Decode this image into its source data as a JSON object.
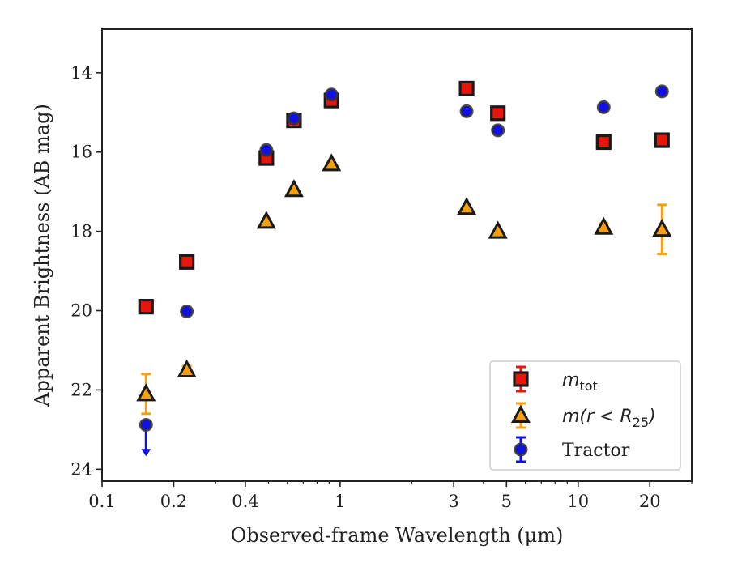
{
  "chart_data": {
    "type": "scatter",
    "xlabel": "Observed-frame Wavelength (μm)",
    "ylabel": "Apparent Brightness (AB mag)",
    "xscale": "log",
    "xlim": [
      0.1,
      30
    ],
    "ylim": [
      24.3,
      12.9
    ],
    "y_inverted": true,
    "grid": false,
    "legend_position": "bottom-right",
    "xticks": [
      {
        "value": 0.1,
        "label": "0.1"
      },
      {
        "value": 0.2,
        "label": "0.2"
      },
      {
        "value": 0.4,
        "label": "0.4"
      },
      {
        "value": 1,
        "label": "1"
      },
      {
        "value": 3,
        "label": "3"
      },
      {
        "value": 5,
        "label": "5"
      },
      {
        "value": 10,
        "label": "10"
      },
      {
        "value": 20,
        "label": "20"
      }
    ],
    "yticks": [
      {
        "value": 14,
        "label": "14"
      },
      {
        "value": 16,
        "label": "16"
      },
      {
        "value": 18,
        "label": "18"
      },
      {
        "value": 20,
        "label": "20"
      },
      {
        "value": 22,
        "label": "22"
      },
      {
        "value": 24,
        "label": "24"
      }
    ],
    "series": [
      {
        "name": "m_tot",
        "legend_main": "m",
        "legend_sub": "tot",
        "marker": "square",
        "color": "#e8150c",
        "edge": "#1a1a1a",
        "points": [
          {
            "x": 0.153,
            "y": 19.9,
            "err": 0
          },
          {
            "x": 0.227,
            "y": 18.77,
            "err": 0
          },
          {
            "x": 0.49,
            "y": 16.15,
            "err": 0
          },
          {
            "x": 0.64,
            "y": 15.2,
            "err": 0
          },
          {
            "x": 0.92,
            "y": 14.7,
            "err": 0
          },
          {
            "x": 3.4,
            "y": 14.4,
            "err": 0
          },
          {
            "x": 4.6,
            "y": 15.02,
            "err": 0
          },
          {
            "x": 12.8,
            "y": 15.75,
            "err": 0
          },
          {
            "x": 22.5,
            "y": 15.7,
            "err": 0
          }
        ]
      },
      {
        "name": "m(r<R25)",
        "legend_main": "m(r < R",
        "legend_sub": "25",
        "legend_tail": ")",
        "marker": "triangle",
        "color": "#f5a00f",
        "edge": "#1a1a1a",
        "points": [
          {
            "x": 0.153,
            "y": 22.1,
            "err": 0.5
          },
          {
            "x": 0.227,
            "y": 21.5,
            "err": 0.1
          },
          {
            "x": 0.49,
            "y": 17.75,
            "err": 0
          },
          {
            "x": 0.64,
            "y": 16.95,
            "err": 0
          },
          {
            "x": 0.92,
            "y": 16.3,
            "err": 0
          },
          {
            "x": 3.4,
            "y": 17.4,
            "err": 0
          },
          {
            "x": 4.6,
            "y": 18.0,
            "err": 0
          },
          {
            "x": 12.8,
            "y": 17.9,
            "err": 0.1
          },
          {
            "x": 22.5,
            "y": 17.95,
            "err": 0.62
          }
        ]
      },
      {
        "name": "Tractor",
        "legend_main": "Tractor",
        "marker": "circle",
        "color": "#1010e8",
        "edge": "#333333",
        "points": [
          {
            "x": 0.153,
            "y": 22.88,
            "err": 0,
            "upper_limit": true
          },
          {
            "x": 0.227,
            "y": 20.02,
            "err": 0
          },
          {
            "x": 0.49,
            "y": 15.95,
            "err": 0
          },
          {
            "x": 0.64,
            "y": 15.15,
            "err": 0
          },
          {
            "x": 0.92,
            "y": 14.55,
            "err": 0
          },
          {
            "x": 3.4,
            "y": 14.97,
            "err": 0
          },
          {
            "x": 4.6,
            "y": 15.45,
            "err": 0
          },
          {
            "x": 12.8,
            "y": 14.87,
            "err": 0
          },
          {
            "x": 22.5,
            "y": 14.47,
            "err": 0
          }
        ]
      }
    ]
  }
}
